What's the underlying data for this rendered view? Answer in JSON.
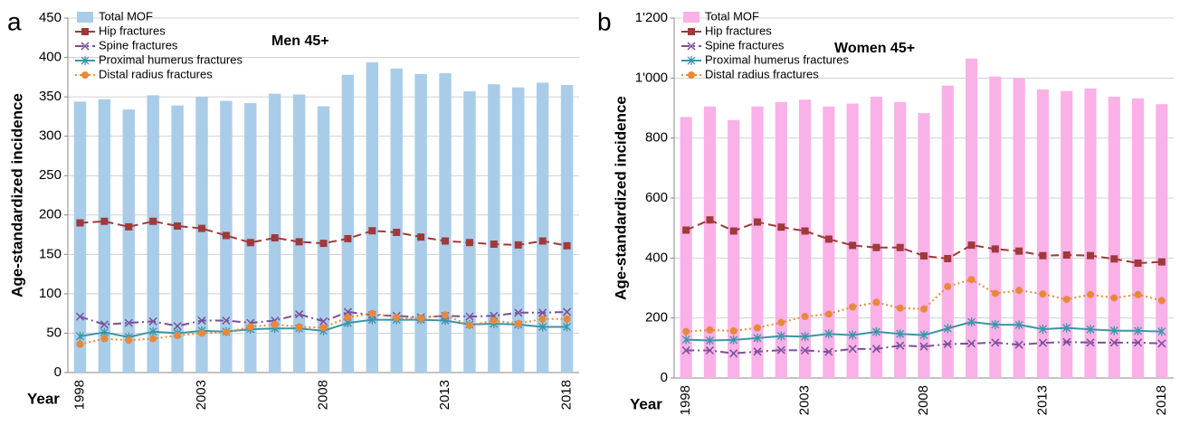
{
  "chart_data": [
    {
      "type": "bar",
      "panel": "a",
      "title": "Men 45+",
      "y_label": "Age-standardized incidence",
      "x_label": "Year",
      "categories": [
        "1998",
        null,
        null,
        null,
        null,
        "2003",
        null,
        null,
        null,
        null,
        "2008",
        null,
        null,
        null,
        null,
        "2013",
        null,
        null,
        null,
        null,
        "2018"
      ],
      "ylim": [
        0,
        450
      ],
      "yticks": [
        0,
        50,
        100,
        150,
        200,
        250,
        300,
        350,
        400,
        450
      ],
      "grid": true,
      "legend": "top-left",
      "series": [
        {
          "name": "Total MOF",
          "type": "bar",
          "color": "#a9cde9",
          "values": [
            344,
            347,
            334,
            352,
            339,
            350,
            345,
            342,
            354,
            353,
            338,
            378,
            394,
            386,
            379,
            380,
            357,
            366,
            362,
            368,
            365
          ]
        },
        {
          "name": "Hip fractures",
          "type": "line",
          "color": "#a0393a",
          "marker": "square",
          "line_style": "dashed",
          "values": [
            190,
            192,
            185,
            192,
            186,
            183,
            174,
            165,
            171,
            166,
            164,
            170,
            180,
            178,
            172,
            167,
            165,
            163,
            162,
            167,
            161
          ]
        },
        {
          "name": "Spine fractures",
          "type": "line",
          "color": "#7a4f9a",
          "marker": "x",
          "line_style": "dash-dot",
          "values": [
            71,
            61,
            63,
            65,
            59,
            66,
            66,
            63,
            66,
            74,
            65,
            77,
            73,
            72,
            70,
            72,
            71,
            72,
            76,
            76,
            77
          ]
        },
        {
          "name": "Proximal humerus fractures",
          "type": "line",
          "color": "#3b95a8",
          "marker": "star",
          "line_style": "solid",
          "values": [
            46,
            51,
            45,
            52,
            50,
            53,
            52,
            55,
            56,
            56,
            53,
            63,
            67,
            67,
            67,
            66,
            61,
            62,
            61,
            58,
            58
          ]
        },
        {
          "name": "Distal radius fractures",
          "type": "line",
          "color": "#e8893a",
          "marker": "circle",
          "line_style": "dotted",
          "values": [
            36,
            43,
            41,
            43,
            47,
            50,
            51,
            58,
            61,
            58,
            57,
            70,
            75,
            70,
            69,
            73,
            60,
            66,
            62,
            68,
            68
          ]
        }
      ]
    },
    {
      "type": "bar",
      "panel": "b",
      "title": "Women 45+",
      "y_label": "Age-standardized incidence",
      "x_label": "Year",
      "categories": [
        "1998",
        null,
        null,
        null,
        null,
        "2003",
        null,
        null,
        null,
        null,
        "2008",
        null,
        null,
        null,
        null,
        "2013",
        null,
        null,
        null,
        null,
        "2018"
      ],
      "ylim": [
        0,
        1200
      ],
      "yticks": [
        0,
        200,
        400,
        600,
        800,
        {
          "value": 1000,
          "label": "1'000"
        },
        {
          "value": 1200,
          "label": "1'200"
        }
      ],
      "grid": true,
      "legend": "top-left",
      "series": [
        {
          "name": "Total MOF",
          "type": "bar",
          "color": "#f9b1e8",
          "values": [
            870,
            905,
            860,
            905,
            920,
            928,
            905,
            915,
            938,
            920,
            883,
            975,
            1065,
            1005,
            1000,
            962,
            957,
            965,
            938,
            932,
            913
          ]
        },
        {
          "name": "Hip fractures",
          "type": "line",
          "color": "#a0393a",
          "marker": "square",
          "line_style": "dashed",
          "values": [
            493,
            527,
            490,
            520,
            503,
            490,
            463,
            442,
            435,
            435,
            407,
            398,
            443,
            430,
            423,
            408,
            410,
            408,
            397,
            383,
            387
          ]
        },
        {
          "name": "Spine fractures",
          "type": "line",
          "color": "#7a4f9a",
          "marker": "x",
          "line_style": "dash-dot",
          "values": [
            92,
            92,
            82,
            88,
            93,
            92,
            87,
            97,
            97,
            108,
            105,
            113,
            115,
            118,
            111,
            117,
            120,
            118,
            118,
            118,
            115
          ]
        },
        {
          "name": "Proximal humerus fractures",
          "type": "line",
          "color": "#3b95a8",
          "marker": "star",
          "line_style": "solid",
          "values": [
            128,
            125,
            127,
            133,
            140,
            138,
            147,
            143,
            154,
            147,
            143,
            165,
            187,
            178,
            177,
            163,
            167,
            162,
            158,
            157,
            155
          ]
        },
        {
          "name": "Distal radius fractures",
          "type": "line",
          "color": "#e8893a",
          "marker": "circle",
          "line_style": "dotted",
          "values": [
            155,
            160,
            157,
            167,
            185,
            205,
            213,
            237,
            252,
            233,
            230,
            305,
            328,
            282,
            292,
            280,
            262,
            278,
            267,
            278,
            258
          ]
        }
      ]
    }
  ]
}
